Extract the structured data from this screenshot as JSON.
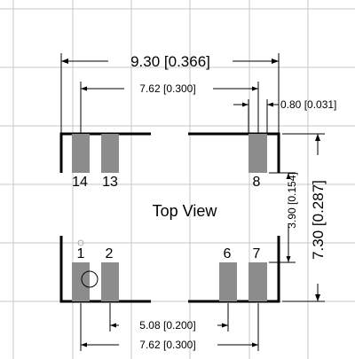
{
  "view_label": "Top View",
  "dimensions": {
    "overall_width": "9.30 [0.366]",
    "row_spacing_top": "7.62 [0.300]",
    "pad_width": "0.80 [0.031]",
    "overall_height": "7.30 [0.287]",
    "pad_row_gap": "3.90 [0.154]",
    "pin_spacing_bottom": "5.08 [0.200]",
    "row_spacing_bottom": "7.62 [0.300]"
  },
  "pins": {
    "p14": "14",
    "p13": "13",
    "p8": "8",
    "p1": "1",
    "p2": "2",
    "p6": "6",
    "p7": "7"
  }
}
